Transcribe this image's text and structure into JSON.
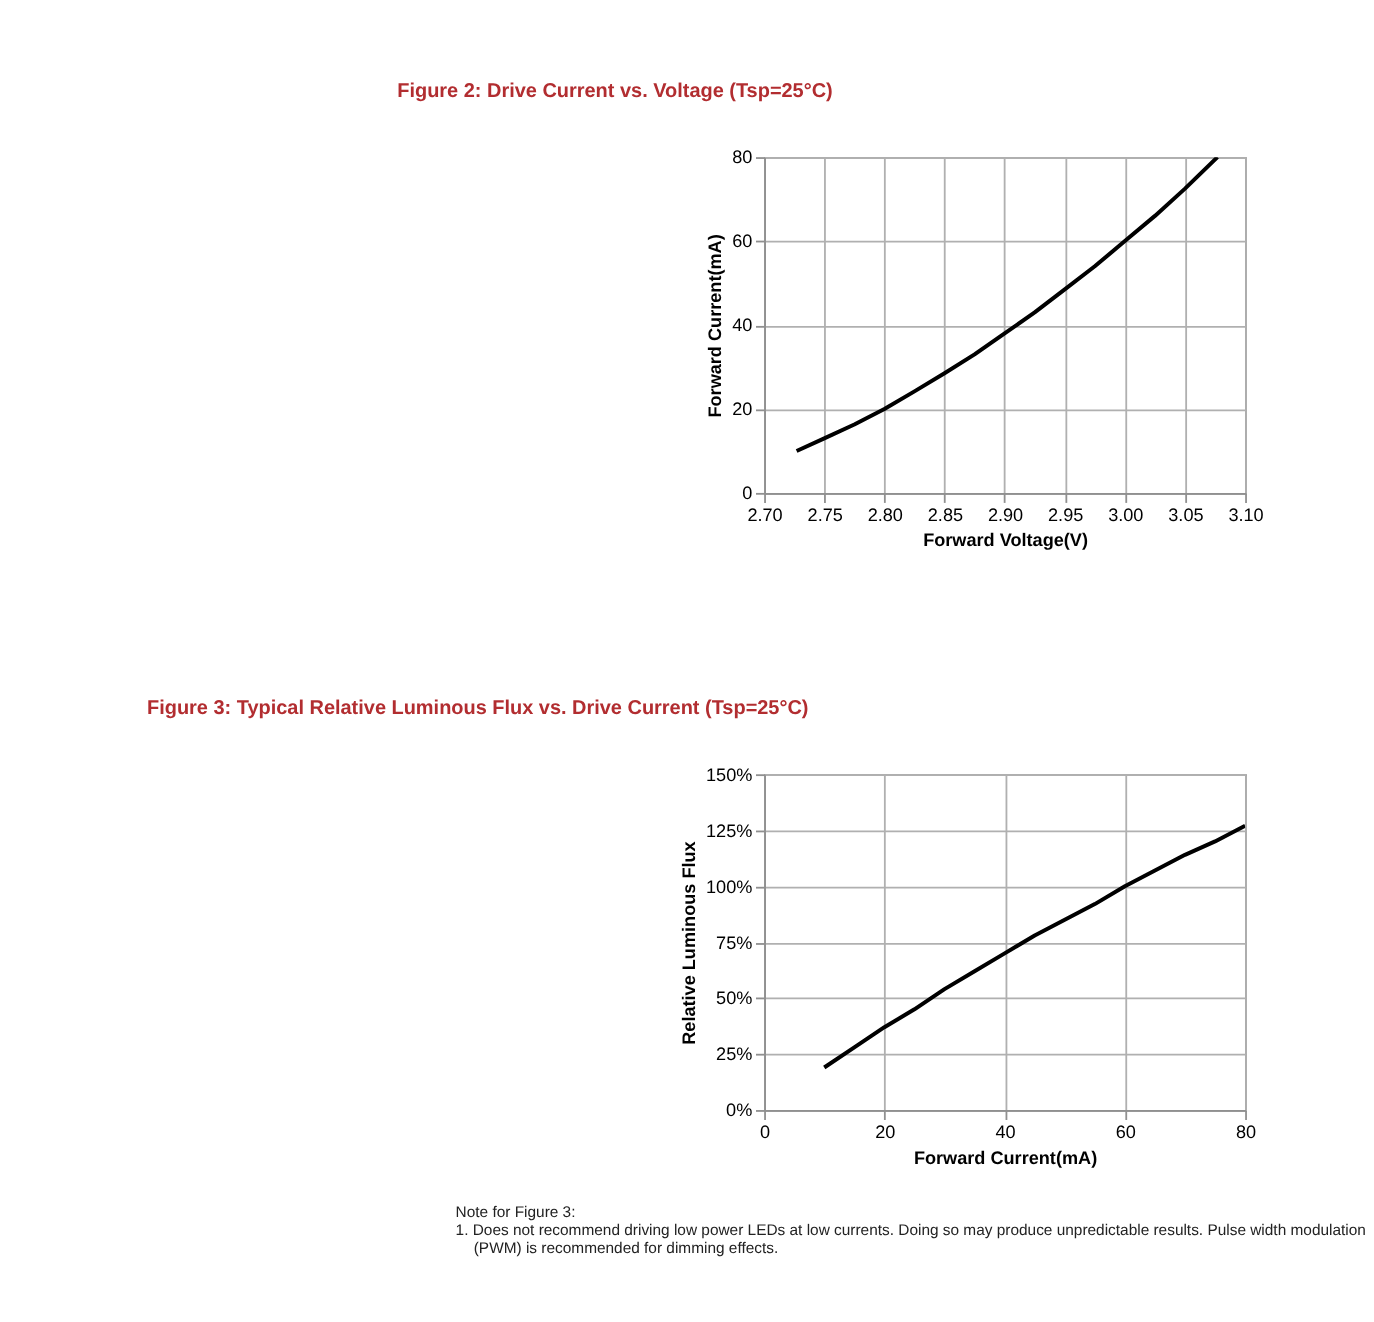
{
  "chart_data": [
    {
      "type": "line",
      "title": "Figure 2: Drive Current vs. Voltage (Tsp=25°C)",
      "xlabel": "Forward Voltage(V)",
      "ylabel": "Forward Current(mA)",
      "x": [
        2.727,
        2.75,
        2.775,
        2.8,
        2.825,
        2.85,
        2.875,
        2.9,
        2.925,
        2.95,
        2.975,
        3.0,
        3.025,
        3.05,
        3.077
      ],
      "series": [
        {
          "color": "#000000",
          "values": [
            10,
            13,
            16.3,
            20,
            24.2,
            28.5,
            33,
            38,
            43,
            48.5,
            54,
            60,
            66,
            72.5,
            80
          ]
        }
      ],
      "xlim": [
        2.7,
        3.1
      ],
      "xticks": [
        {
          "value": 2.7,
          "label": "2.70"
        },
        2.75,
        {
          "value": 2.8,
          "label": "2.80"
        },
        2.85,
        {
          "value": 2.9,
          "label": "2.90"
        },
        2.95,
        {
          "value": 3.0,
          "label": "3.00"
        },
        3.05,
        {
          "value": 3.1,
          "label": "3.10"
        }
      ],
      "ylim": [
        0,
        80
      ],
      "yticks": [
        0,
        20,
        40,
        60,
        80
      ],
      "grid": true,
      "marker": "none",
      "line_style": "solid"
    },
    {
      "type": "line",
      "title": "Figure 3: Typical Relative Luminous Flux vs. Drive Current (Tsp=25°C)",
      "xlabel": "Forward Current(mA)",
      "ylabel": "Relative Luminous Flux",
      "x": [
        10,
        15,
        20,
        25,
        30,
        35,
        40,
        45,
        50,
        55,
        60,
        65,
        70,
        75,
        80
      ],
      "series": [
        {
          "color": "#000000",
          "values": [
            19,
            28,
            37,
            45,
            54,
            62,
            70,
            78,
            85,
            92,
            100,
            107,
            114,
            120,
            127
          ]
        }
      ],
      "xlim": [
        0,
        80
      ],
      "xticks": [
        0,
        20,
        40,
        60,
        80
      ],
      "ylim": [
        0,
        150
      ],
      "yticks": [
        {
          "value": 0,
          "label": "0%"
        },
        {
          "value": 25,
          "label": "25%"
        },
        {
          "value": 50,
          "label": "50%"
        },
        {
          "value": 75,
          "label": "75%"
        },
        {
          "value": 100,
          "label": "100%"
        },
        {
          "value": 125,
          "label": "125%"
        },
        {
          "value": 150,
          "label": "150%"
        }
      ],
      "grid": true,
      "marker": "none",
      "line_style": "solid",
      "annotations": [
        "Note for Figure 3:",
        "1.  Does not recommend driving low power LEDs at low currents. Doing so may produce unpredictable results. Pulse width modulation",
        "(PWM) is recommended for dimming effects."
      ]
    }
  ]
}
